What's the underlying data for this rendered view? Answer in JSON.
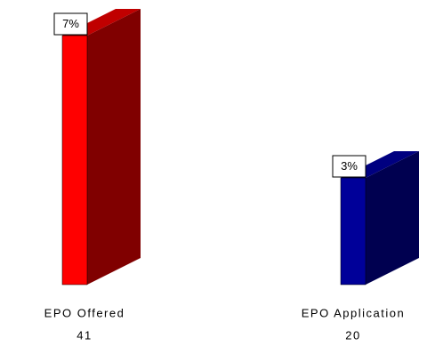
{
  "chart_data": {
    "type": "bar3d",
    "categories": [
      "EPO Offered",
      "EPO Application"
    ],
    "counts": [
      "41",
      "20"
    ],
    "values": [
      7,
      3
    ],
    "value_labels": [
      "7%",
      "3%"
    ],
    "series_colors": [
      {
        "front": "#ff0000",
        "side": "#800000",
        "top": "#c00000"
      },
      {
        "front": "#000099",
        "side": "#000050",
        "top": "#000080"
      }
    ]
  }
}
